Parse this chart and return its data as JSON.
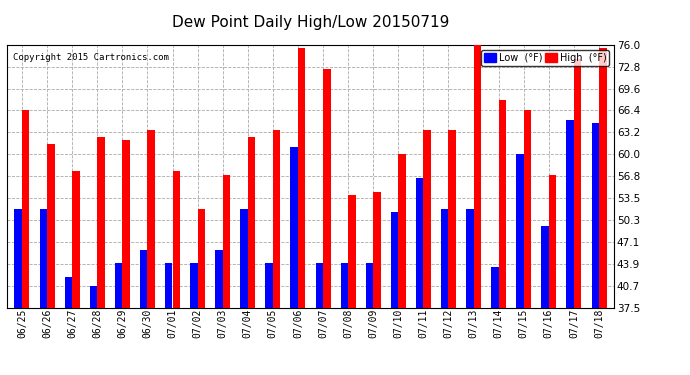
{
  "title": "Dew Point Daily High/Low 20150719",
  "copyright": "Copyright 2015 Cartronics.com",
  "dates": [
    "06/25",
    "06/26",
    "06/27",
    "06/28",
    "06/29",
    "06/30",
    "07/01",
    "07/02",
    "07/03",
    "07/04",
    "07/05",
    "07/06",
    "07/07",
    "07/08",
    "07/09",
    "07/10",
    "07/11",
    "07/12",
    "07/13",
    "07/14",
    "07/15",
    "07/16",
    "07/17",
    "07/18"
  ],
  "low": [
    52.0,
    52.0,
    42.0,
    40.7,
    44.0,
    46.0,
    44.0,
    44.0,
    46.0,
    52.0,
    44.0,
    61.0,
    44.0,
    44.0,
    44.0,
    51.5,
    56.5,
    52.0,
    52.0,
    43.5,
    60.0,
    49.5,
    65.0,
    64.5
  ],
  "high": [
    66.5,
    61.5,
    57.5,
    62.5,
    62.0,
    63.5,
    57.5,
    52.0,
    57.0,
    62.5,
    63.5,
    75.5,
    72.5,
    54.0,
    54.5,
    60.0,
    63.5,
    63.5,
    77.0,
    68.0,
    66.5,
    57.0,
    74.0,
    75.5
  ],
  "ylim": [
    37.5,
    76.0
  ],
  "yticks": [
    37.5,
    40.7,
    43.9,
    47.1,
    50.3,
    53.5,
    56.8,
    60.0,
    63.2,
    66.4,
    69.6,
    72.8,
    76.0
  ],
  "low_color": "#0000ff",
  "high_color": "#ff0000",
  "bg_color": "#ffffff",
  "grid_color": "#aaaaaa",
  "title_fontsize": 11,
  "legend_low_label": "Low  (°F)",
  "legend_high_label": "High  (°F)"
}
